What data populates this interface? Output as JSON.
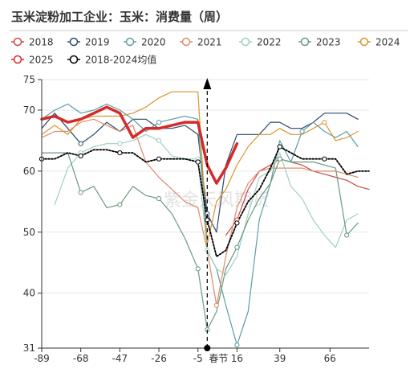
{
  "title": "玉米淀粉加工企业：玉米：消费量（周）",
  "watermark": "紫金天风期货",
  "legend": [
    {
      "name": "2018",
      "color": "#c94b4b"
    },
    {
      "name": "2019",
      "color": "#2d4a6b"
    },
    {
      "name": "2020",
      "color": "#5a9ea6"
    },
    {
      "name": "2021",
      "color": "#e08a6a"
    },
    {
      "name": "2022",
      "color": "#9fd0c3"
    },
    {
      "name": "2023",
      "color": "#6a9a7f"
    },
    {
      "name": "2024",
      "color": "#d9952f"
    },
    {
      "name": "2025",
      "color": "#d42a2a"
    },
    {
      "name": "2018-2024均值",
      "color": "#000000"
    }
  ],
  "chart_data": {
    "type": "line",
    "title": "玉米淀粉加工企业：玉米：消费量（周）",
    "x_label_marker": "春节",
    "x_ticks": [
      -89,
      -68,
      -47,
      -26,
      -5,
      16,
      39,
      66
    ],
    "x_tick_labels": [
      "-89",
      "-68",
      "-47",
      "-26",
      "-5",
      "16",
      "39",
      "66"
    ],
    "xlim": [
      -89,
      87
    ],
    "y_ticks": [
      31,
      40,
      50,
      60,
      70,
      75
    ],
    "ylim": [
      31,
      75
    ],
    "marker_x": 0,
    "series": [
      {
        "name": "2018",
        "color": "#c94b4b",
        "width": 1.2,
        "x": [
          10,
          16,
          22,
          28,
          34,
          39,
          45,
          51,
          57,
          63,
          69,
          75,
          81,
          87
        ],
        "y": [
          49.5,
          52,
          57,
          60,
          61,
          62,
          61.5,
          61,
          60,
          59.5,
          59,
          58.5,
          57.5,
          57
        ]
      },
      {
        "name": "2019",
        "color": "#2d4a6b",
        "width": 1.2,
        "x": [
          -89,
          -82,
          -75,
          -68,
          -61,
          -54,
          -47,
          -40,
          -33,
          -26,
          -19,
          -12,
          -5,
          0,
          5,
          10,
          16,
          22,
          28,
          34,
          39,
          45,
          51,
          57,
          63,
          69,
          75,
          81
        ],
        "y": [
          67,
          69.5,
          67,
          64.5,
          66,
          68,
          66.5,
          68.5,
          68.5,
          67,
          67,
          67.5,
          66,
          53,
          50,
          61,
          66,
          66,
          66,
          68,
          68,
          67,
          67,
          68,
          69.5,
          69.5,
          69.5,
          68.5
        ]
      },
      {
        "name": "2020",
        "color": "#5a9ea6",
        "width": 1.2,
        "x": [
          -89,
          -82,
          -75,
          -68,
          -61,
          -54,
          -47,
          -40,
          -33,
          -26,
          -19,
          -12,
          -5,
          0,
          5,
          10,
          16,
          22,
          28,
          34,
          39,
          45,
          51,
          57,
          63,
          69,
          75,
          81
        ],
        "y": [
          68.5,
          70,
          71,
          69.5,
          70,
          71,
          70,
          68.5,
          66.5,
          68,
          68.5,
          69,
          68.5,
          47,
          44,
          38,
          31.5,
          37,
          52,
          58,
          65,
          61.5,
          66.5,
          68,
          66.5,
          65.5,
          66.5,
          64
        ]
      },
      {
        "name": "2021",
        "color": "#e08a6a",
        "width": 1.2,
        "x": [
          -89,
          -82,
          -75,
          -68,
          -61,
          -54,
          -47,
          -40,
          -33,
          -26,
          -19,
          -12,
          -5,
          0,
          5,
          10,
          16,
          22,
          28,
          34,
          39,
          45,
          51,
          57,
          63,
          69,
          75,
          81
        ],
        "y": [
          65.5,
          66.5,
          66.5,
          68,
          68.5,
          67.5,
          66.5,
          67.5,
          61.5,
          59,
          57,
          55,
          54,
          47,
          38,
          46,
          54,
          58,
          60,
          60.5,
          60.5,
          60.5,
          60.5,
          60,
          60,
          60,
          59.5,
          59
        ]
      },
      {
        "name": "2022",
        "color": "#9fd0c3",
        "width": 1.2,
        "x": [
          -82,
          -75,
          -68,
          -61,
          -54,
          -47,
          -40,
          -33,
          -26,
          -19,
          -12,
          -5,
          0,
          5,
          10,
          16,
          22,
          28,
          34,
          39,
          45,
          51,
          57,
          63,
          69,
          75,
          81
        ],
        "y": [
          54.5,
          60.5,
          63,
          64,
          64.5,
          64.5,
          65,
          66,
          65,
          62.5,
          62,
          62,
          47,
          44,
          43,
          46,
          53,
          59,
          60,
          63,
          57.5,
          55.5,
          52,
          49.5,
          47.5,
          52,
          53
        ]
      },
      {
        "name": "2023",
        "color": "#6a9a7f",
        "width": 1.2,
        "x": [
          -89,
          -82,
          -75,
          -68,
          -61,
          -54,
          -47,
          -40,
          -33,
          -26,
          -19,
          -12,
          -5,
          0,
          5,
          10,
          16,
          22,
          28,
          34,
          39,
          45,
          51,
          57,
          63,
          69,
          75,
          81
        ],
        "y": [
          63,
          63,
          63,
          56.5,
          57.5,
          54,
          54.5,
          57.5,
          56,
          55.5,
          53,
          49,
          44,
          34,
          37,
          44,
          47.5,
          52,
          55.5,
          58,
          62,
          61.5,
          61.5,
          61.5,
          61,
          60.5,
          49.5,
          51.5
        ]
      },
      {
        "name": "2024",
        "color": "#d9952f",
        "width": 1.2,
        "x": [
          -89,
          -82,
          -75,
          -68,
          -61,
          -54,
          -47,
          -40,
          -33,
          -26,
          -19,
          -12,
          -5,
          0,
          5,
          10,
          16,
          22,
          28,
          34,
          39,
          45,
          51,
          57,
          63,
          69,
          75,
          81
        ],
        "y": [
          66,
          67.5,
          66,
          68.5,
          69,
          69,
          69,
          69.5,
          70.5,
          72,
          73,
          73,
          73,
          48,
          55,
          57,
          61,
          64,
          66,
          66,
          67,
          66,
          66,
          67,
          68,
          65,
          65.5,
          66.5
        ]
      },
      {
        "name": "2025",
        "color": "#d42a2a",
        "width": 3.5,
        "x": [
          -89,
          -82,
          -75,
          -68,
          -61,
          -54,
          -47,
          -40,
          -33,
          -26,
          -19,
          -12,
          -5,
          0,
          5,
          10,
          16
        ],
        "y": [
          68.5,
          69,
          68,
          68.5,
          69.5,
          70.5,
          69.5,
          65.5,
          67,
          67,
          67.5,
          68,
          68,
          61,
          58,
          60.5,
          64.5
        ]
      },
      {
        "name": "2018-2024均值",
        "color": "#000000",
        "width": 1.8,
        "dash": "2,2",
        "x": [
          -89,
          -82,
          -75,
          -68,
          -61,
          -54,
          -47,
          -40,
          -33,
          -26,
          -19,
          -12,
          -5,
          0,
          5,
          10,
          16,
          22,
          28,
          34,
          39,
          45,
          51,
          57,
          63,
          69,
          75,
          81,
          87
        ],
        "y": [
          62,
          62,
          63,
          62.5,
          63.5,
          63.5,
          63,
          63,
          61.5,
          62,
          62,
          62,
          61.5,
          52,
          46,
          47,
          51.5,
          55,
          57,
          60.5,
          64,
          63,
          62,
          62,
          62,
          62,
          59.5,
          60,
          60
        ]
      }
    ],
    "markers": [
      {
        "series": "2018",
        "x": 16,
        "y": 52
      },
      {
        "series": "2018",
        "x": 39,
        "y": 62
      },
      {
        "series": "2019",
        "x": -68,
        "y": 64.5
      },
      {
        "series": "2019",
        "x": 0,
        "y": 53
      },
      {
        "series": "2020",
        "x": -26,
        "y": 68
      },
      {
        "series": "2020",
        "x": 16,
        "y": 31.5
      },
      {
        "series": "2020",
        "x": 51,
        "y": 66.5
      },
      {
        "series": "2021",
        "x": 5,
        "y": 38
      },
      {
        "series": "2022",
        "x": -68,
        "y": 63
      },
      {
        "series": "2022",
        "x": -47,
        "y": 64.5
      },
      {
        "series": "2022",
        "x": -26,
        "y": 65
      },
      {
        "series": "2022",
        "x": -5,
        "y": 62
      },
      {
        "series": "2022",
        "x": 0,
        "y": 47
      },
      {
        "series": "2023",
        "x": -68,
        "y": 56.5
      },
      {
        "series": "2023",
        "x": -47,
        "y": 54.5
      },
      {
        "series": "2023",
        "x": -26,
        "y": 55.5
      },
      {
        "series": "2023",
        "x": -5,
        "y": 44
      },
      {
        "series": "2023",
        "x": 0,
        "y": 34
      },
      {
        "series": "2023",
        "x": 16,
        "y": 47.5
      },
      {
        "series": "2023",
        "x": 39,
        "y": 62
      },
      {
        "series": "2023",
        "x": 75,
        "y": 49.5
      },
      {
        "series": "2024",
        "x": 63,
        "y": 68
      },
      {
        "series": "2018-2024均值",
        "x": -89,
        "y": 62
      },
      {
        "series": "2018-2024均值",
        "x": -68,
        "y": 62.5
      },
      {
        "series": "2018-2024均值",
        "x": -47,
        "y": 63
      },
      {
        "series": "2018-2024均值",
        "x": -26,
        "y": 62
      },
      {
        "series": "2018-2024均值",
        "x": -5,
        "y": 61.5
      },
      {
        "series": "2018-2024均值",
        "x": 0,
        "y": 52
      },
      {
        "series": "2018-2024均值",
        "x": 16,
        "y": 51.5
      },
      {
        "series": "2018-2024均值",
        "x": 39,
        "y": 64
      },
      {
        "series": "2018-2024均值",
        "x": 63,
        "y": 62
      }
    ]
  }
}
